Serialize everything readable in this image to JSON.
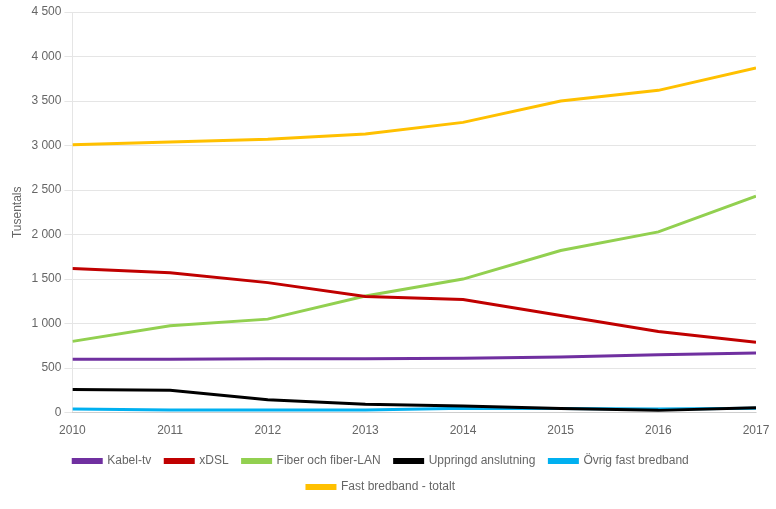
{
  "chart_data": {
    "type": "line",
    "x": [
      2010,
      2011,
      2012,
      2013,
      2014,
      2015,
      2016,
      2017
    ],
    "series": [
      {
        "name": "Kabel-tv",
        "color": "#7030a0",
        "values": [
          600,
          600,
          605,
          605,
          610,
          625,
          650,
          670
        ]
      },
      {
        "name": "xDSL",
        "color": "#c00000",
        "values": [
          1620,
          1570,
          1460,
          1305,
          1270,
          1090,
          910,
          790
        ]
      },
      {
        "name": "Fiber och fiber-LAN",
        "color": "#92d050",
        "values": [
          800,
          975,
          1050,
          1310,
          1500,
          1820,
          2030,
          2430
        ]
      },
      {
        "name": "Uppringd anslutning",
        "color": "#000000",
        "values": [
          260,
          250,
          145,
          95,
          75,
          45,
          25,
          55
        ]
      },
      {
        "name": "Övrig fast bredband",
        "color": "#00b0f0",
        "values": [
          40,
          30,
          30,
          28,
          50,
          45,
          40,
          50
        ]
      },
      {
        "name": "Fast bredband - totalt",
        "color": "#ffc000",
        "values": [
          3010,
          3040,
          3070,
          3130,
          3260,
          3500,
          3620,
          3870
        ]
      }
    ],
    "ylabel": "Tusentals",
    "xlim": [
      2010,
      2017
    ],
    "xticks": [
      2010,
      2011,
      2012,
      2013,
      2014,
      2015,
      2016,
      2017
    ],
    "ylim": [
      0,
      4500
    ],
    "yticks": [
      0,
      500,
      {
        "value": 1000,
        "label": "1 000"
      },
      {
        "value": 1500,
        "label": "1 500"
      },
      {
        "value": 2000,
        "label": "2 000"
      },
      {
        "value": 2500,
        "label": "2 500"
      },
      {
        "value": 3000,
        "label": "3 000"
      },
      {
        "value": 3500,
        "label": "3 500"
      },
      {
        "value": 4000,
        "label": "4 000"
      },
      {
        "value": 4500,
        "label": "4 500"
      }
    ],
    "grid": "y",
    "legend": "bottom"
  }
}
